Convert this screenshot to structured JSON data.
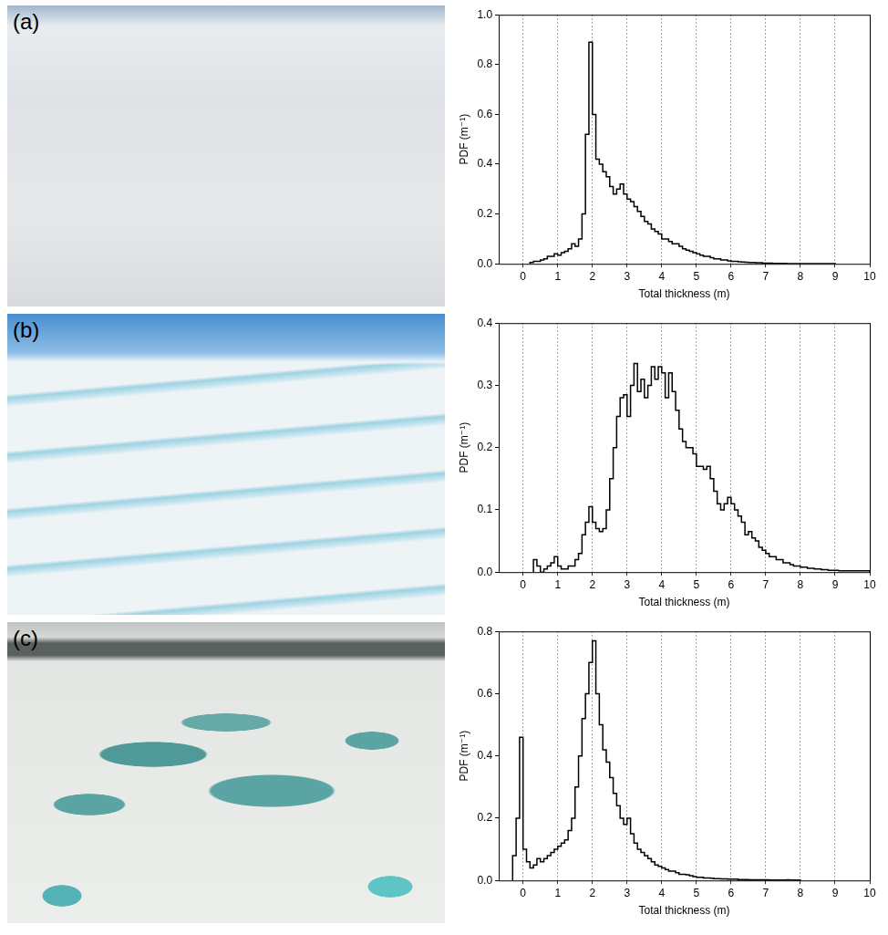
{
  "chart_data": [
    {
      "type": "histogram",
      "panel_label": "(a)",
      "x_label": "Total thickness (m)",
      "y_label": "PDF (m⁻¹)",
      "xlim": [
        -0.7,
        10
      ],
      "xticks": [
        0,
        1,
        2,
        3,
        4,
        5,
        6,
        7,
        8,
        9,
        10
      ],
      "ylim": [
        0,
        1
      ],
      "yticks": [
        {
          "value": 0,
          "label": "0.0"
        },
        {
          "value": 0.2,
          "label": "0.2"
        },
        {
          "value": 0.4,
          "label": "0.4"
        },
        {
          "value": 0.6,
          "label": "0.6"
        },
        {
          "value": 0.8,
          "label": "0.8"
        },
        {
          "value": 1,
          "label": "1.0"
        }
      ],
      "grid": true,
      "color": "#000000",
      "bins": [
        0.2,
        0.3,
        0.4,
        0.5,
        0.6,
        0.7,
        0.8,
        0.9,
        1.0,
        1.1,
        1.2,
        1.3,
        1.4,
        1.5,
        1.6,
        1.7,
        1.8,
        1.9,
        2.0,
        2.1,
        2.2,
        2.3,
        2.4,
        2.5,
        2.6,
        2.7,
        2.8,
        2.9,
        3.0,
        3.1,
        3.2,
        3.3,
        3.4,
        3.5,
        3.6,
        3.7,
        3.8,
        3.9,
        4.0,
        4.1,
        4.2,
        4.3,
        4.4,
        4.5,
        4.6,
        4.7,
        4.8,
        4.9,
        5.0,
        5.1,
        5.2,
        5.3,
        5.4,
        5.5,
        5.6,
        5.7,
        5.8,
        5.9,
        6.0,
        6.1,
        6.2,
        6.3,
        6.4,
        6.5,
        6.6,
        6.7,
        6.8,
        6.9,
        7.0,
        7.1,
        7.2,
        7.3,
        7.4,
        7.5,
        7.6,
        7.7,
        7.8,
        7.9,
        8.0,
        8.1,
        8.2,
        8.3,
        8.4,
        8.5,
        8.6,
        8.7,
        8.8,
        8.9,
        9.0
      ],
      "values": [
        0.005,
        0.005,
        0.01,
        0.01,
        0.015,
        0.02,
        0.03,
        0.03,
        0.04,
        0.035,
        0.045,
        0.05,
        0.06,
        0.08,
        0.07,
        0.1,
        0.2,
        0.52,
        0.89,
        0.6,
        0.42,
        0.4,
        0.37,
        0.35,
        0.31,
        0.28,
        0.3,
        0.32,
        0.28,
        0.26,
        0.25,
        0.23,
        0.21,
        0.19,
        0.17,
        0.16,
        0.14,
        0.13,
        0.12,
        0.1,
        0.1,
        0.09,
        0.08,
        0.08,
        0.07,
        0.06,
        0.055,
        0.05,
        0.045,
        0.04,
        0.035,
        0.03,
        0.03,
        0.025,
        0.02,
        0.02,
        0.015,
        0.015,
        0.012,
        0.01,
        0.01,
        0.008,
        0.007,
        0.006,
        0.005,
        0.005,
        0.004,
        0.004,
        0.003,
        0.003,
        0.003,
        0.002,
        0.002,
        0.002,
        0.002,
        0.001,
        0.001,
        0.001,
        0.001,
        0.001,
        0.001,
        0.001,
        0.001,
        0.001,
        0.001,
        0.001,
        0.001,
        0.001
      ]
    },
    {
      "type": "histogram",
      "panel_label": "(b)",
      "x_label": "Total thickness (m)",
      "y_label": "PDF (m⁻¹)",
      "xlim": [
        -0.7,
        10
      ],
      "xticks": [
        0,
        1,
        2,
        3,
        4,
        5,
        6,
        7,
        8,
        9,
        10
      ],
      "ylim": [
        0,
        0.4
      ],
      "yticks": [
        {
          "value": 0,
          "label": "0.0"
        },
        {
          "value": 0.1,
          "label": "0.1"
        },
        {
          "value": 0.2,
          "label": "0.2"
        },
        {
          "value": 0.3,
          "label": "0.3"
        },
        {
          "value": 0.4,
          "label": "0.4"
        }
      ],
      "grid": true,
      "color": "#000000",
      "bins": [
        0.3,
        0.4,
        0.5,
        0.6,
        0.7,
        0.8,
        0.9,
        1.0,
        1.1,
        1.2,
        1.3,
        1.4,
        1.5,
        1.6,
        1.7,
        1.8,
        1.9,
        2.0,
        2.1,
        2.2,
        2.3,
        2.4,
        2.5,
        2.6,
        2.7,
        2.8,
        2.9,
        3.0,
        3.1,
        3.2,
        3.3,
        3.4,
        3.5,
        3.6,
        3.7,
        3.8,
        3.9,
        4.0,
        4.1,
        4.2,
        4.3,
        4.4,
        4.5,
        4.6,
        4.7,
        4.8,
        4.9,
        5.0,
        5.1,
        5.2,
        5.3,
        5.4,
        5.5,
        5.6,
        5.7,
        5.8,
        5.9,
        6.0,
        6.1,
        6.2,
        6.3,
        6.4,
        6.5,
        6.6,
        6.7,
        6.8,
        6.9,
        7.0,
        7.1,
        7.2,
        7.3,
        7.4,
        7.5,
        7.6,
        7.7,
        7.8,
        7.9,
        8.0,
        8.1,
        8.2,
        8.3,
        8.4,
        8.5,
        8.6,
        8.7,
        8.8,
        8.9,
        9.0,
        9.1,
        9.2,
        9.3,
        9.4,
        9.5,
        9.6,
        9.7,
        9.8,
        9.9,
        10.0
      ],
      "values": [
        0.0,
        0.02,
        0.01,
        0.0,
        0.005,
        0.01,
        0.015,
        0.025,
        0.01,
        0.005,
        0.005,
        0.01,
        0.01,
        0.02,
        0.03,
        0.06,
        0.08,
        0.105,
        0.08,
        0.07,
        0.065,
        0.07,
        0.1,
        0.15,
        0.2,
        0.25,
        0.28,
        0.285,
        0.25,
        0.3,
        0.335,
        0.29,
        0.31,
        0.28,
        0.3,
        0.33,
        0.31,
        0.33,
        0.32,
        0.28,
        0.32,
        0.29,
        0.26,
        0.23,
        0.21,
        0.2,
        0.2,
        0.19,
        0.17,
        0.17,
        0.165,
        0.17,
        0.15,
        0.13,
        0.11,
        0.1,
        0.11,
        0.12,
        0.11,
        0.1,
        0.09,
        0.08,
        0.06,
        0.065,
        0.055,
        0.05,
        0.04,
        0.035,
        0.03,
        0.025,
        0.025,
        0.02,
        0.02,
        0.015,
        0.015,
        0.012,
        0.01,
        0.01,
        0.008,
        0.008,
        0.006,
        0.006,
        0.005,
        0.005,
        0.004,
        0.004,
        0.003,
        0.003,
        0.003,
        0.002,
        0.002,
        0.002,
        0.002,
        0.002,
        0.002,
        0.002,
        0.002
      ]
    },
    {
      "type": "histogram",
      "panel_label": "(c)",
      "x_label": "Total thickness (m)",
      "y_label": "PDF (m⁻¹)",
      "xlim": [
        -0.7,
        10
      ],
      "xticks": [
        0,
        1,
        2,
        3,
        4,
        5,
        6,
        7,
        8,
        9,
        10
      ],
      "ylim": [
        0,
        0.8
      ],
      "yticks": [
        {
          "value": 0,
          "label": "0.0"
        },
        {
          "value": 0.2,
          "label": "0.2"
        },
        {
          "value": 0.4,
          "label": "0.4"
        },
        {
          "value": 0.6,
          "label": "0.6"
        },
        {
          "value": 0.8,
          "label": "0.8"
        }
      ],
      "grid": true,
      "color": "#000000",
      "bins": [
        -0.3,
        -0.2,
        -0.1,
        0,
        0.1,
        0.2,
        0.3,
        0.4,
        0.5,
        0.6,
        0.7,
        0.8,
        0.9,
        1.0,
        1.1,
        1.2,
        1.3,
        1.4,
        1.5,
        1.6,
        1.7,
        1.8,
        1.9,
        2.0,
        2.1,
        2.2,
        2.3,
        2.4,
        2.5,
        2.6,
        2.7,
        2.8,
        2.9,
        3.0,
        3.1,
        3.2,
        3.3,
        3.4,
        3.5,
        3.6,
        3.7,
        3.8,
        3.9,
        4.0,
        4.1,
        4.2,
        4.3,
        4.4,
        4.5,
        4.6,
        4.7,
        4.8,
        4.9,
        5.0,
        5.1,
        5.2,
        5.3,
        5.4,
        5.5,
        5.6,
        5.7,
        5.8,
        5.9,
        6.0,
        6.1,
        6.2,
        6.3,
        6.4,
        6.5,
        6.6,
        6.7,
        6.8,
        6.9,
        7.0,
        7.1,
        7.2,
        7.3,
        7.4,
        7.5,
        7.6,
        7.7,
        7.8,
        7.9,
        8.0
      ],
      "values": [
        0.02,
        0.08,
        0.2,
        0.46,
        0.1,
        0.06,
        0.04,
        0.05,
        0.07,
        0.06,
        0.07,
        0.08,
        0.09,
        0.1,
        0.11,
        0.12,
        0.13,
        0.16,
        0.2,
        0.3,
        0.4,
        0.52,
        0.6,
        0.7,
        0.77,
        0.6,
        0.5,
        0.42,
        0.38,
        0.33,
        0.28,
        0.24,
        0.2,
        0.18,
        0.2,
        0.15,
        0.12,
        0.1,
        0.09,
        0.08,
        0.07,
        0.06,
        0.05,
        0.045,
        0.04,
        0.035,
        0.03,
        0.03,
        0.025,
        0.02,
        0.02,
        0.018,
        0.015,
        0.012,
        0.01,
        0.01,
        0.008,
        0.008,
        0.007,
        0.006,
        0.006,
        0.005,
        0.005,
        0.004,
        0.004,
        0.004,
        0.003,
        0.003,
        0.003,
        0.002,
        0.002,
        0.002,
        0.002,
        0.002,
        0.002,
        0.001,
        0.001,
        0.001,
        0.001,
        0.001,
        0.002,
        0.001,
        0.001
      ]
    }
  ]
}
